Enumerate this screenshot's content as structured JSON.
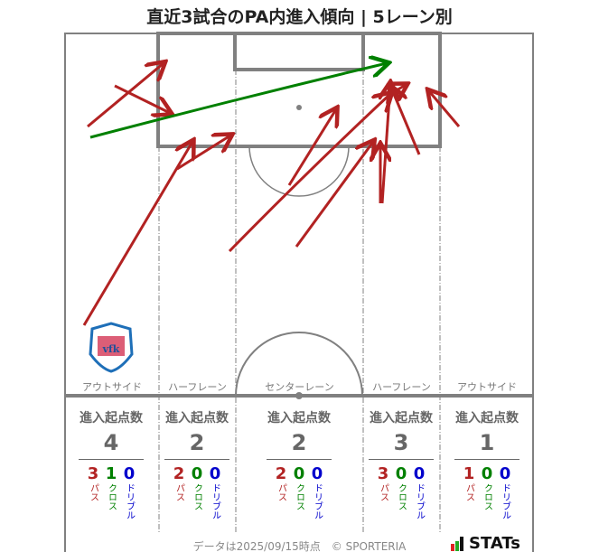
{
  "title": "直近3試合のPA内進入傾向 | 5レーン別",
  "colors": {
    "pass": "#b22222",
    "cross": "#008000",
    "dribble": "#0000cc",
    "line": "#808080"
  },
  "lanes": [
    {
      "name": "アウトサイド",
      "total": "4",
      "pass": "3",
      "cross": "1",
      "dribble": "0"
    },
    {
      "name": "ハーフレーン",
      "total": "2",
      "pass": "2",
      "cross": "0",
      "dribble": "0"
    },
    {
      "name": "センターレーン",
      "total": "2",
      "pass": "2",
      "cross": "0",
      "dribble": "0"
    },
    {
      "name": "ハーフレーン",
      "total": "3",
      "pass": "3",
      "cross": "0",
      "dribble": "0"
    },
    {
      "name": "アウトサイド",
      "total": "1",
      "pass": "1",
      "cross": "0",
      "dribble": "0"
    }
  ],
  "stat_header": "進入起点数",
  "labels": {
    "pass": "パス",
    "cross": "クロス",
    "dribble": "ドリブル"
  },
  "team_logo": "vfk",
  "footer": "データは2025/09/15時点　© SPORTERIA",
  "brand": "STATs"
}
